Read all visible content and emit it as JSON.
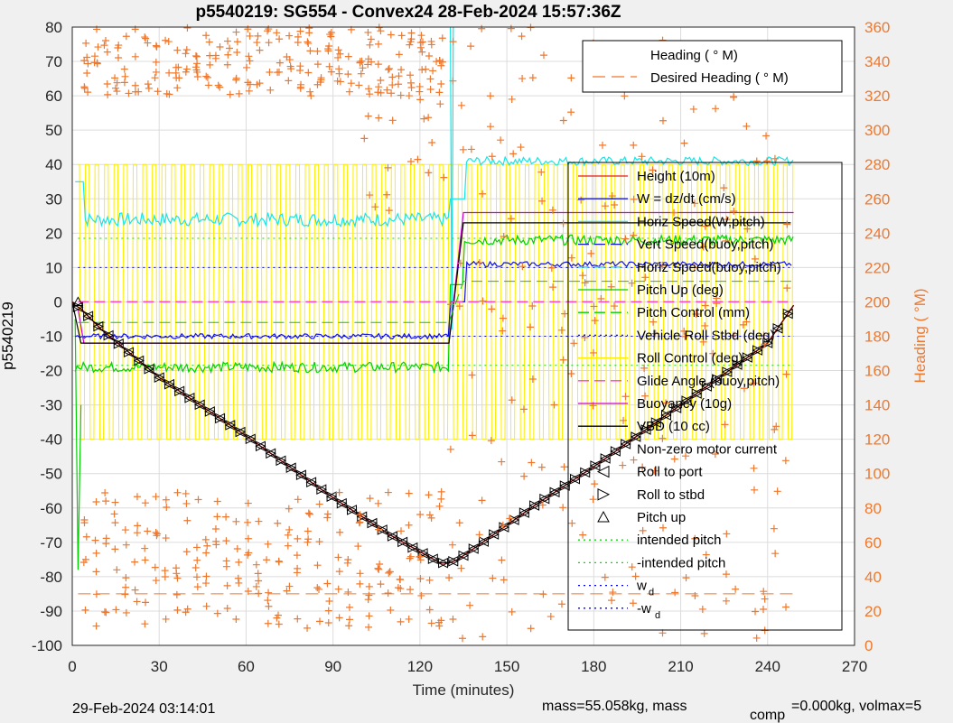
{
  "chart_data": {
    "type": "line",
    "title": "p5540219: SG554 - Convex24 28-Feb-2024 15:57:36Z",
    "xlabel": "Time (minutes)",
    "ylabel": "p5540219",
    "y2label": "Heading (  °M)",
    "xlim": [
      0,
      270
    ],
    "ylim": [
      -100,
      80
    ],
    "y2lim": [
      0,
      360
    ],
    "xticks": [
      0,
      30,
      60,
      90,
      120,
      150,
      180,
      210,
      240,
      270
    ],
    "yticks": [
      -100,
      -90,
      -80,
      -70,
      -60,
      -50,
      -40,
      -30,
      -20,
      -10,
      0,
      10,
      20,
      30,
      40,
      50,
      60,
      70,
      80
    ],
    "y2ticks": [
      0,
      20,
      40,
      60,
      80,
      100,
      120,
      140,
      160,
      180,
      200,
      220,
      240,
      260,
      280,
      300,
      320,
      340,
      360
    ],
    "grid": true,
    "colors": {
      "heading": "#f0782d",
      "height": "#e41a1c",
      "w": "#1010e0",
      "horiz": "#19e5e5",
      "pitch": "#00d000",
      "roll": "#ffee00",
      "buoy": "#d000d0",
      "vbd": "#000000",
      "glide": "#ff40c0",
      "intended": "#00e000",
      "wd": "#0000ff"
    },
    "series_heading": [
      {
        "name": "Heading (  ° M)",
        "style": "plus"
      },
      {
        "name": "Desired Heading (   ° M)",
        "style": "dashed"
      }
    ],
    "legend_main": [
      "Height (10m)",
      "W = dz/dt (cm/s)",
      "Horiz Speed(W,pitch)",
      "Vert Speed(buoy,pitch)",
      "Horiz Speed(buoy,pitch)",
      "Pitch Up (deg)",
      "Pitch Control (mm)",
      "Vehicle Roll Stbd (deg)",
      "Roll Control (deg)",
      "Glide Angle (buoy,pitch)",
      "Buoyancy (10g)",
      "VBD (10 cc)",
      "Non-zero motor current",
      "Roll to port",
      "Roll to stbd",
      "Pitch up",
      "intended pitch",
      "-intended pitch",
      "w",
      "-w"
    ],
    "legend_subscript": "d",
    "depth_profile": {
      "x": [
        0,
        1,
        3,
        10,
        30,
        60,
        90,
        110,
        127,
        130,
        133,
        140,
        160,
        180,
        200,
        220,
        240,
        249
      ],
      "y": [
        0,
        -1,
        -2,
        -8,
        -22,
        -39,
        -57,
        -68,
        -76,
        -76,
        -75,
        -71,
        -59,
        -48,
        -36,
        -24,
        -12,
        -1
      ]
    },
    "vbd_steps": {
      "x": [
        0,
        3,
        130,
        135,
        248
      ],
      "y": [
        0,
        -12,
        -12,
        23,
        23
      ]
    },
    "footer_left": "29-Feb-2024 03:14:01",
    "footer_right": "mass=55.058kg, mass",
    "footer_sub": "comp",
    "footer_right2": "=0.000kg, volmax=5"
  }
}
